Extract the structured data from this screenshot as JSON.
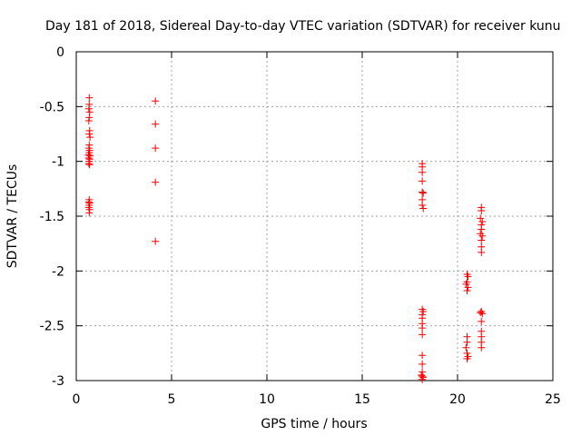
{
  "chart_data": {
    "type": "scatter",
    "title": "Day 181 of 2018, Sidereal Day-to-day VTEC variation (SDTVAR) for receiver kunu",
    "xlabel": "GPS time / hours",
    "ylabel": "SDTVAR / TECUs",
    "xlim": [
      0,
      25
    ],
    "ylim": [
      -3,
      0
    ],
    "xticks": [
      0,
      5,
      10,
      15,
      20,
      25
    ],
    "yticks": [
      0,
      -0.5,
      -1,
      -1.5,
      -2,
      -2.5,
      -3
    ],
    "xtick_labels": [
      "0",
      "5",
      "10",
      "15",
      "20",
      "25"
    ],
    "ytick_labels": [
      "0",
      "-0.5",
      "-1",
      "-1.5",
      "-2",
      "-2.5",
      "-3"
    ],
    "grid": true,
    "marker": "+",
    "color": "#ff0000",
    "series": [
      {
        "name": "SDTVAR",
        "points": [
          [
            0.68,
            -0.42
          ],
          [
            0.68,
            -0.48
          ],
          [
            0.66,
            -0.52
          ],
          [
            0.7,
            -0.55
          ],
          [
            0.68,
            -0.6
          ],
          [
            0.66,
            -0.63
          ],
          [
            0.7,
            -0.72
          ],
          [
            0.68,
            -0.75
          ],
          [
            0.72,
            -0.78
          ],
          [
            0.68,
            -0.85
          ],
          [
            0.66,
            -0.88
          ],
          [
            0.7,
            -0.9
          ],
          [
            0.68,
            -0.92
          ],
          [
            0.64,
            -0.94
          ],
          [
            0.72,
            -0.95
          ],
          [
            0.66,
            -0.97
          ],
          [
            0.7,
            -0.98
          ],
          [
            0.68,
            -1.0
          ],
          [
            0.66,
            -1.02
          ],
          [
            0.7,
            -1.03
          ],
          [
            0.68,
            -1.35
          ],
          [
            0.66,
            -1.37
          ],
          [
            0.7,
            -1.38
          ],
          [
            0.68,
            -1.4
          ],
          [
            0.66,
            -1.42
          ],
          [
            0.7,
            -1.44
          ],
          [
            0.68,
            -1.47
          ],
          [
            4.15,
            -0.45
          ],
          [
            4.15,
            -0.66
          ],
          [
            4.15,
            -0.88
          ],
          [
            4.15,
            -1.19
          ],
          [
            4.15,
            -1.73
          ],
          [
            18.15,
            -1.02
          ],
          [
            18.15,
            -1.05
          ],
          [
            18.15,
            -1.1
          ],
          [
            18.15,
            -1.18
          ],
          [
            18.15,
            -1.28
          ],
          [
            18.2,
            -1.29
          ],
          [
            18.15,
            -1.35
          ],
          [
            18.15,
            -1.4
          ],
          [
            18.2,
            -1.43
          ],
          [
            18.15,
            -2.35
          ],
          [
            18.2,
            -2.37
          ],
          [
            18.15,
            -2.4
          ],
          [
            18.15,
            -2.43
          ],
          [
            18.15,
            -2.48
          ],
          [
            18.15,
            -2.52
          ],
          [
            18.15,
            -2.58
          ],
          [
            18.15,
            -2.77
          ],
          [
            18.15,
            -2.85
          ],
          [
            18.15,
            -2.92
          ],
          [
            18.1,
            -2.95
          ],
          [
            18.15,
            -2.96
          ],
          [
            18.2,
            -2.97
          ],
          [
            18.15,
            -2.99
          ],
          [
            20.5,
            -2.03
          ],
          [
            20.55,
            -2.05
          ],
          [
            20.5,
            -2.1
          ],
          [
            20.45,
            -2.12
          ],
          [
            20.55,
            -2.15
          ],
          [
            20.5,
            -2.18
          ],
          [
            20.5,
            -2.6
          ],
          [
            20.5,
            -2.65
          ],
          [
            20.45,
            -2.7
          ],
          [
            20.5,
            -2.75
          ],
          [
            20.55,
            -2.78
          ],
          [
            20.5,
            -2.8
          ],
          [
            21.25,
            -1.42
          ],
          [
            21.25,
            -1.45
          ],
          [
            21.2,
            -1.52
          ],
          [
            21.3,
            -1.55
          ],
          [
            21.25,
            -1.58
          ],
          [
            21.25,
            -1.62
          ],
          [
            21.2,
            -1.66
          ],
          [
            21.3,
            -1.68
          ],
          [
            21.25,
            -1.72
          ],
          [
            21.25,
            -1.78
          ],
          [
            21.25,
            -1.83
          ],
          [
            21.25,
            -2.37
          ],
          [
            21.2,
            -2.38
          ],
          [
            21.3,
            -2.39
          ],
          [
            21.25,
            -2.46
          ],
          [
            21.25,
            -2.55
          ],
          [
            21.25,
            -2.6
          ],
          [
            21.25,
            -2.65
          ],
          [
            21.25,
            -2.7
          ]
        ]
      }
    ]
  }
}
